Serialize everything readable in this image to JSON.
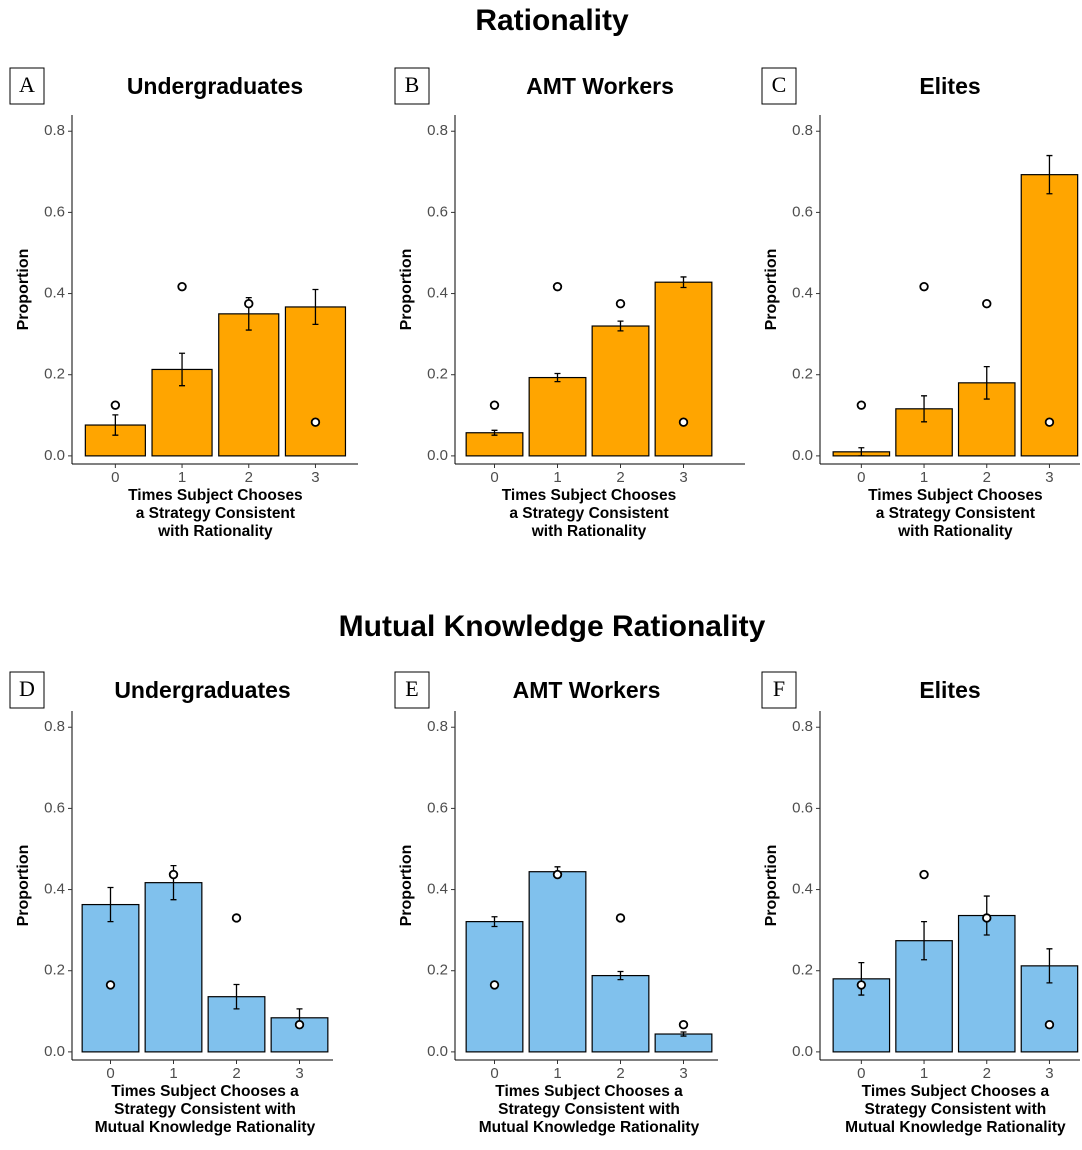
{
  "section_titles": [
    "Rationality",
    "Mutual Knowledge Rationality"
  ],
  "chart_data": [
    {
      "type": "bar",
      "panel": "A",
      "title": "Undergraduates",
      "ylabel": "Proportion",
      "xlabel": [
        "Times Subject Chooses",
        "a Strategy Consistent",
        "with Rationality"
      ],
      "categories": [
        "0",
        "1",
        "2",
        "3"
      ],
      "values": [
        0.076,
        0.213,
        0.35,
        0.367
      ],
      "errors": [
        0.025,
        0.04,
        0.04,
        0.043
      ],
      "points": [
        0.125,
        0.417,
        0.375,
        0.083
      ],
      "color": "#ffa500",
      "ylim": [
        -0.02,
        0.84
      ],
      "yticks": [
        {
          "value": 0,
          "label": "0.0"
        },
        {
          "value": 0.2,
          "label": "0.2"
        },
        {
          "value": 0.4,
          "label": "0.4"
        },
        {
          "value": 0.6,
          "label": "0.6"
        },
        {
          "value": 0.8,
          "label": "0.8"
        }
      ]
    },
    {
      "type": "bar",
      "panel": "B",
      "title": "AMT Workers",
      "ylabel": "Proportion",
      "xlabel": [
        "Times Subject Chooses",
        "a Strategy Consistent",
        "with Rationality"
      ],
      "categories": [
        "0",
        "1",
        "2",
        "3"
      ],
      "values": [
        0.057,
        0.193,
        0.32,
        0.428
      ],
      "errors": [
        0.006,
        0.01,
        0.012,
        0.013
      ],
      "points": [
        0.125,
        0.417,
        0.375,
        0.083
      ],
      "color": "#ffa500",
      "ylim": [
        -0.02,
        0.84
      ],
      "yticks": [
        {
          "value": 0,
          "label": "0.0"
        },
        {
          "value": 0.2,
          "label": "0.2"
        },
        {
          "value": 0.4,
          "label": "0.4"
        },
        {
          "value": 0.6,
          "label": "0.6"
        },
        {
          "value": 0.8,
          "label": "0.8"
        }
      ]
    },
    {
      "type": "bar",
      "panel": "C",
      "title": "Elites",
      "ylabel": "Proportion",
      "xlabel": [
        "Times Subject Chooses",
        "a Strategy Consistent",
        "with Rationality"
      ],
      "categories": [
        "0",
        "1",
        "2",
        "3"
      ],
      "values": [
        0.01,
        0.116,
        0.18,
        0.693
      ],
      "errors": [
        0.01,
        0.032,
        0.04,
        0.047
      ],
      "points": [
        0.125,
        0.417,
        0.375,
        0.083
      ],
      "color": "#ffa500",
      "ylim": [
        -0.02,
        0.84
      ],
      "yticks": [
        {
          "value": 0,
          "label": "0.0"
        },
        {
          "value": 0.2,
          "label": "0.2"
        },
        {
          "value": 0.4,
          "label": "0.4"
        },
        {
          "value": 0.6,
          "label": "0.6"
        },
        {
          "value": 0.8,
          "label": "0.8"
        }
      ]
    },
    {
      "type": "bar",
      "panel": "D",
      "title": "Undergraduates",
      "ylabel": "Proportion",
      "xlabel": [
        "Times Subject Chooses a",
        "Strategy Consistent with",
        "Mutual Knowledge Rationality"
      ],
      "categories": [
        "0",
        "1",
        "2",
        "3"
      ],
      "values": [
        0.363,
        0.417,
        0.136,
        0.084
      ],
      "errors": [
        0.042,
        0.042,
        0.03,
        0.022
      ],
      "points": [
        0.165,
        0.437,
        0.33,
        0.067
      ],
      "color": "#80c1ed",
      "ylim": [
        -0.02,
        0.84
      ],
      "yticks": [
        {
          "value": 0,
          "label": "0.0"
        },
        {
          "value": 0.2,
          "label": "0.2"
        },
        {
          "value": 0.4,
          "label": "0.4"
        },
        {
          "value": 0.6,
          "label": "0.6"
        },
        {
          "value": 0.8,
          "label": "0.8"
        }
      ]
    },
    {
      "type": "bar",
      "panel": "E",
      "title": "AMT Workers",
      "ylabel": "Proportion",
      "xlabel": [
        "Times Subject Chooses a",
        "Strategy Consistent with",
        "Mutual Knowledge Rationality"
      ],
      "categories": [
        "0",
        "1",
        "2",
        "3"
      ],
      "values": [
        0.321,
        0.444,
        0.188,
        0.044
      ],
      "errors": [
        0.012,
        0.012,
        0.01,
        0.005
      ],
      "points": [
        0.165,
        0.437,
        0.33,
        0.067
      ],
      "color": "#80c1ed",
      "ylim": [
        -0.02,
        0.84
      ],
      "yticks": [
        {
          "value": 0,
          "label": "0.0"
        },
        {
          "value": 0.2,
          "label": "0.2"
        },
        {
          "value": 0.4,
          "label": "0.4"
        },
        {
          "value": 0.6,
          "label": "0.6"
        },
        {
          "value": 0.8,
          "label": "0.8"
        }
      ]
    },
    {
      "type": "bar",
      "panel": "F",
      "title": "Elites",
      "ylabel": "Proportion",
      "xlabel": [
        "Times Subject Chooses a",
        "Strategy Consistent with",
        "Mutual Knowledge Rationality"
      ],
      "categories": [
        "0",
        "1",
        "2",
        "3"
      ],
      "values": [
        0.18,
        0.274,
        0.336,
        0.212
      ],
      "errors": [
        0.04,
        0.047,
        0.048,
        0.042
      ],
      "points": [
        0.165,
        0.437,
        0.33,
        0.067
      ],
      "color": "#80c1ed",
      "ylim": [
        -0.02,
        0.84
      ],
      "yticks": [
        {
          "value": 0,
          "label": "0.0"
        },
        {
          "value": 0.2,
          "label": "0.2"
        },
        {
          "value": 0.4,
          "label": "0.4"
        },
        {
          "value": 0.6,
          "label": "0.6"
        },
        {
          "value": 0.8,
          "label": "0.8"
        }
      ]
    }
  ]
}
